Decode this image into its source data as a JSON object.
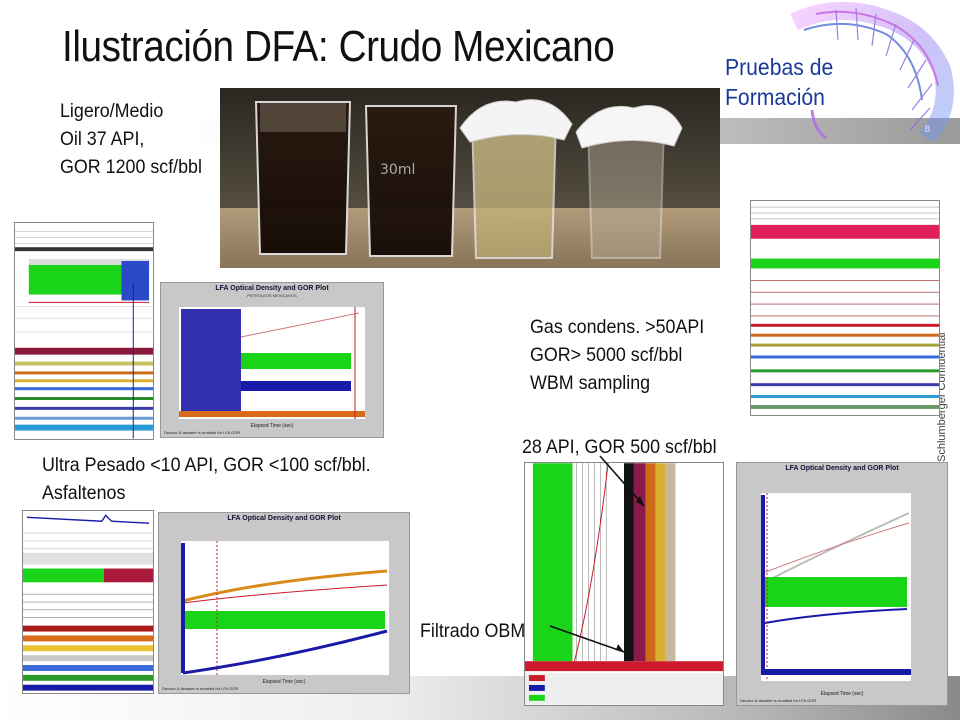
{
  "slide": {
    "title": "Ilustración DFA: Crudo Mexicano",
    "page_number": "8",
    "confidential": "Schlumberger Confidential"
  },
  "logo": {
    "line1": "Pruebas de",
    "line2": "Formación"
  },
  "labels": {
    "light": [
      "Ligero/Medio",
      "Oil 37 API,",
      "GOR 1200 scf/bbl"
    ],
    "gas": [
      "Gas condens. >50API",
      "GOR> 5000 scf/bbl",
      "WBM sampling"
    ],
    "heavy": [
      "Ultra Pesado <10 API, GOR <100 scf/bbl.",
      "Asfaltenos"
    ],
    "medium": "28 API, GOR 500 scf/bbl",
    "filtrate": "Filtrado OBM"
  },
  "photo": {
    "beaker_label": "30ml"
  },
  "plots": {
    "plot_a": {
      "title": "LFA Optical Density and GOR Plot",
      "subtitle": "PETROLEOS MEXICANOS",
      "xlabel": "Elapsed Time (sec)",
      "footer": "Decolor & dewater is enabled for LFA GOR"
    },
    "plot_b": {
      "title": "LFA Optical Density and GOR Plot",
      "xlabel": "Elapsed Time (sec)",
      "footer": "Decolor & dewater is enabled for LFA GOR"
    },
    "plot_c": {
      "title": "LFA Optical Density and GOR Plot",
      "xlabel": "Elapsed Time (sec)",
      "footer": "Decolor & dewater is enabled for LFA GOR"
    }
  },
  "colors": {
    "green": "#19d419",
    "blue": "#1a1aa8",
    "red": "#cc1a2a",
    "maroon": "#8a1a3a",
    "logo_blue": "#1a3a9a"
  }
}
